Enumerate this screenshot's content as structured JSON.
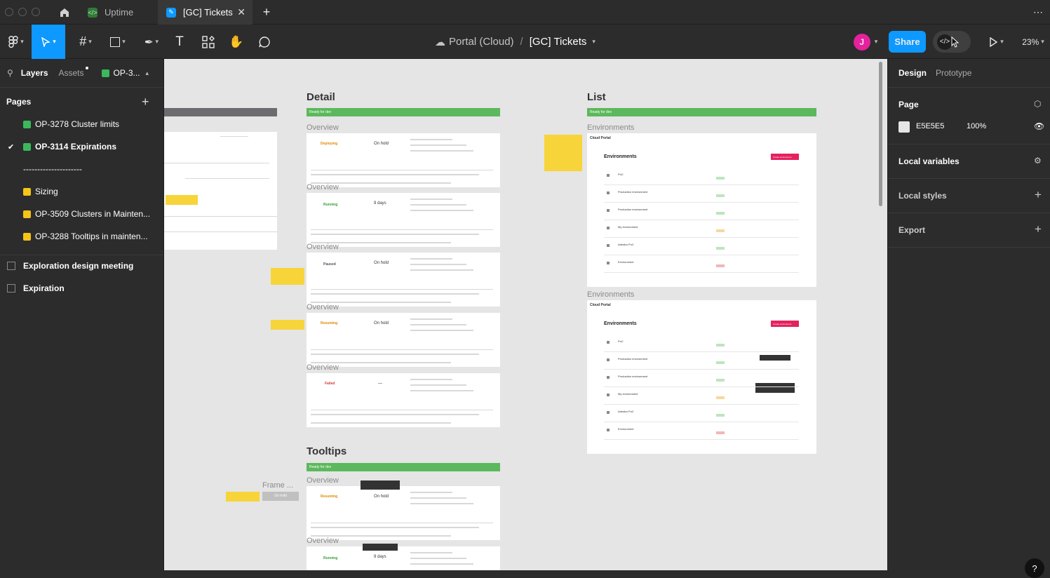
{
  "tabs": [
    {
      "label": "Uptime"
    },
    {
      "label": "[GC] Tickets"
    }
  ],
  "toolbar": {
    "breadcrumb_project": "Portal (Cloud)",
    "breadcrumb_sep": "/",
    "file_name": "[GC] Tickets",
    "avatar_initial": "J",
    "share_label": "Share",
    "zoom": "23%"
  },
  "left_panel": {
    "tab_layers": "Layers",
    "tab_assets": "Assets",
    "tab_page": "OP-3...",
    "pages_title": "Pages",
    "pages": [
      {
        "label": "OP-3278 Cluster limits",
        "marker": "green"
      },
      {
        "label": "OP-3114 Expirations",
        "marker": "green",
        "selected": true
      },
      {
        "label": "---------------------",
        "marker": "none"
      },
      {
        "label": "Sizing",
        "marker": "yellow"
      },
      {
        "label": "OP-3509 Clusters in Mainten...",
        "marker": "yellow"
      },
      {
        "label": "OP-3288 Tooltips in mainten...",
        "marker": "yellow"
      }
    ],
    "layers": [
      {
        "label": "Exploration design meeting"
      },
      {
        "label": "Expiration"
      }
    ]
  },
  "right_panel": {
    "tab_design": "Design",
    "tab_prototype": "Prototype",
    "page_title": "Page",
    "page_color": "E5E5E5",
    "page_opacity": "100%",
    "local_variables": "Local variables",
    "local_styles": "Local styles",
    "export": "Export"
  },
  "canvas": {
    "detail_title": "Detail",
    "list_title": "List",
    "tooltips_title": "Tooltips",
    "ready_label": "Ready for dev",
    "overview_label": "Overview",
    "environments_label": "Environments",
    "frame_label": "Frame ...",
    "on_hold_chip": "On hold",
    "detail_cards": [
      {
        "state": "Deploying",
        "state_color": "#e08a00",
        "exp": "On hold"
      },
      {
        "state": "Running",
        "state_color": "#3a9a3a",
        "exp": "9 days"
      },
      {
        "state": "Paused",
        "state_color": "#555555",
        "exp": "On hold"
      },
      {
        "state": "Resuming",
        "state_color": "#e08a00",
        "exp": "On hold"
      },
      {
        "state": "Failed",
        "state_color": "#d33a3a",
        "exp": "—"
      }
    ],
    "tooltip_cards": [
      {
        "state": "Resuming",
        "state_color": "#e08a00",
        "exp": "On hold"
      },
      {
        "state": "Running",
        "state_color": "#3a9a3a",
        "exp": "9 days"
      }
    ],
    "list_header": "Environments",
    "list_brand": "Cloud Portal",
    "list_button": "Create environment",
    "list_rows": [
      "PoC",
      "Production environment",
      "Production environment",
      "My environment",
      "Adestra PoC",
      "Environment"
    ]
  },
  "colors": {
    "accent": "#0d99ff",
    "canvas_bg": "#e5e5e5",
    "ready_green": "#5cb85c",
    "sticky": "#f7d43a",
    "avatar": "#e5219d"
  }
}
